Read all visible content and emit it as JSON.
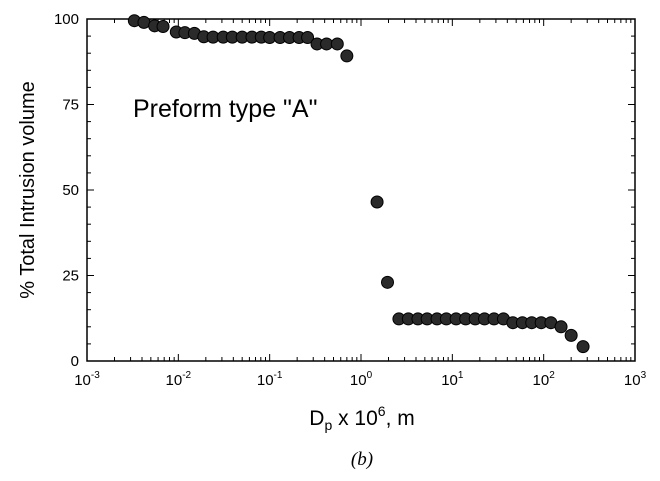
{
  "chart_data": {
    "type": "scatter",
    "title": "",
    "xlabel": "Dp x 10^6, m",
    "xlabel_parts": {
      "base": "D",
      "sub": "p",
      "mid": " x 10",
      "sup": "6",
      "end": ", m"
    },
    "ylabel": "% Total Intrusion volume",
    "annotation": "Preform type \"A\"",
    "caption": "(b)",
    "x_scale": "log",
    "xlim": [
      0.001,
      1000
    ],
    "ylim": [
      0,
      100
    ],
    "x_ticks": [
      {
        "base": "10",
        "exp": "-3",
        "value": 0.001
      },
      {
        "base": "10",
        "exp": "-2",
        "value": 0.01
      },
      {
        "base": "10",
        "exp": "-1",
        "value": 0.1
      },
      {
        "base": "10",
        "exp": "0",
        "value": 1
      },
      {
        "base": "10",
        "exp": "1",
        "value": 10
      },
      {
        "base": "10",
        "exp": "2",
        "value": 100
      },
      {
        "base": "10",
        "exp": "3",
        "value": 1000
      }
    ],
    "y_ticks": [
      {
        "label": "0",
        "value": 0
      },
      {
        "label": "25",
        "value": 25
      },
      {
        "label": "50",
        "value": 50
      },
      {
        "label": "75",
        "value": 75
      },
      {
        "label": "100",
        "value": 100
      }
    ],
    "grid": false,
    "marker_color": "#2a2a2a",
    "series": [
      {
        "points": [
          [
            0.0033,
            99.5
          ],
          [
            0.0042,
            99.0
          ],
          [
            0.0055,
            98.0
          ],
          [
            0.0068,
            97.8
          ],
          [
            0.0095,
            96.2
          ],
          [
            0.0118,
            96.0
          ],
          [
            0.015,
            95.8
          ],
          [
            0.019,
            94.8
          ],
          [
            0.024,
            94.7
          ],
          [
            0.031,
            94.7
          ],
          [
            0.039,
            94.7
          ],
          [
            0.05,
            94.7
          ],
          [
            0.064,
            94.7
          ],
          [
            0.081,
            94.7
          ],
          [
            0.1,
            94.6
          ],
          [
            0.13,
            94.6
          ],
          [
            0.165,
            94.6
          ],
          [
            0.21,
            94.6
          ],
          [
            0.26,
            94.6
          ],
          [
            0.33,
            92.7
          ],
          [
            0.42,
            92.7
          ],
          [
            0.55,
            92.7
          ],
          [
            0.7,
            89.2
          ],
          [
            1.5,
            46.5
          ],
          [
            1.95,
            23.0
          ],
          [
            2.6,
            12.3
          ],
          [
            3.3,
            12.3
          ],
          [
            4.2,
            12.3
          ],
          [
            5.3,
            12.3
          ],
          [
            6.8,
            12.3
          ],
          [
            8.6,
            12.3
          ],
          [
            11.0,
            12.3
          ],
          [
            14.0,
            12.3
          ],
          [
            17.8,
            12.3
          ],
          [
            22.5,
            12.3
          ],
          [
            28.6,
            12.3
          ],
          [
            36.3,
            12.3
          ],
          [
            46.0,
            11.2
          ],
          [
            58.5,
            11.2
          ],
          [
            74.0,
            11.2
          ],
          [
            94.0,
            11.2
          ],
          [
            120.0,
            11.2
          ],
          [
            155.0,
            10.0
          ],
          [
            200.0,
            7.5
          ],
          [
            270.0,
            4.2
          ]
        ]
      }
    ]
  }
}
